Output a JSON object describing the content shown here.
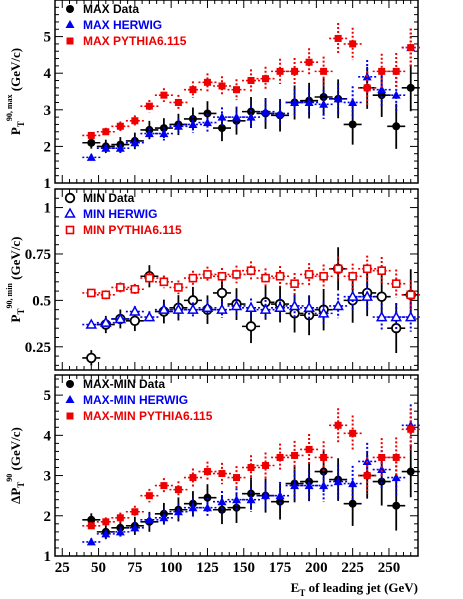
{
  "chart_data": [
    {
      "type": "scatter",
      "ylabel": "P_T^{90, max} (GeV/c)",
      "ylim": [
        1,
        6
      ],
      "xlim": [
        20,
        270
      ],
      "yticks": [
        1,
        2,
        3,
        4,
        5
      ],
      "legend_position": "top-left",
      "series": [
        {
          "name": "MAX Data",
          "color": "#000000",
          "marker": "filled-circle",
          "x": [
            45,
            55,
            65,
            75,
            85,
            95,
            105,
            115,
            125,
            135,
            145,
            155,
            165,
            175,
            185,
            195,
            205,
            215,
            225,
            235,
            245,
            255,
            265
          ],
          "y": [
            2.1,
            2.0,
            2.05,
            2.15,
            2.45,
            2.5,
            2.6,
            2.75,
            2.9,
            2.5,
            2.7,
            2.95,
            2.9,
            2.85,
            3.2,
            3.25,
            3.35,
            3.3,
            2.6,
            3.6,
            3.4,
            2.55,
            3.6
          ]
        },
        {
          "name": "MAX HERWIG",
          "color": "#0000ee",
          "marker": "triangle",
          "x": [
            45,
            55,
            65,
            75,
            85,
            95,
            105,
            115,
            125,
            135,
            145,
            155,
            165,
            175,
            185,
            195,
            205,
            215,
            225,
            235,
            245,
            255,
            265
          ],
          "y": [
            1.7,
            1.95,
            1.95,
            2.1,
            2.35,
            2.35,
            2.55,
            2.6,
            2.65,
            2.8,
            2.8,
            2.8,
            2.95,
            2.9,
            3.2,
            3.2,
            3.15,
            3.3,
            3.2,
            3.9,
            3.55,
            3.4,
            4.7
          ]
        },
        {
          "name": "MAX PYTHIA6.115",
          "color": "#ee0000",
          "marker": "filled-square",
          "x": [
            45,
            55,
            65,
            75,
            85,
            95,
            105,
            115,
            125,
            135,
            145,
            155,
            165,
            175,
            185,
            195,
            205,
            215,
            225,
            235,
            245,
            255,
            265
          ],
          "y": [
            2.3,
            2.4,
            2.55,
            2.7,
            3.1,
            3.4,
            3.2,
            3.55,
            3.75,
            3.65,
            3.55,
            3.8,
            3.85,
            4.05,
            4.05,
            4.3,
            4.05,
            4.95,
            4.8,
            3.6,
            4.05,
            4.05,
            4.7
          ]
        }
      ]
    },
    {
      "type": "scatter",
      "ylabel": "P_T^{90, min} (GeV/c)",
      "ylim": [
        0.125,
        1.1
      ],
      "xlim": [
        20,
        270
      ],
      "yticks": [
        0.25,
        0.5,
        0.75,
        1
      ],
      "legend_position": "top-left",
      "series": [
        {
          "name": "MIN Data",
          "color": "#000000",
          "marker": "open-circle",
          "x": [
            45,
            55,
            65,
            75,
            85,
            95,
            105,
            115,
            125,
            135,
            145,
            155,
            165,
            175,
            185,
            195,
            205,
            215,
            225,
            235,
            245,
            255,
            265
          ],
          "y": [
            0.19,
            0.37,
            0.4,
            0.39,
            0.63,
            0.44,
            0.46,
            0.5,
            0.45,
            0.54,
            0.48,
            0.36,
            0.49,
            0.48,
            0.43,
            0.42,
            0.45,
            0.67,
            0.5,
            0.54,
            0.52,
            0.35,
            0.53
          ]
        },
        {
          "name": "MIN HERWIG",
          "color": "#0000ee",
          "marker": "open-triangle",
          "x": [
            45,
            55,
            65,
            75,
            85,
            95,
            105,
            115,
            125,
            135,
            145,
            155,
            165,
            175,
            185,
            195,
            205,
            215,
            225,
            235,
            245,
            255,
            265
          ],
          "y": [
            0.37,
            0.38,
            0.4,
            0.44,
            0.41,
            0.45,
            0.45,
            0.45,
            0.46,
            0.45,
            0.47,
            0.46,
            0.45,
            0.46,
            0.47,
            0.46,
            0.43,
            0.47,
            0.52,
            0.52,
            0.41,
            0.41,
            0.41
          ]
        },
        {
          "name": "MIN PYTHIA6.115",
          "color": "#ee0000",
          "marker": "open-square",
          "x": [
            45,
            55,
            65,
            75,
            85,
            95,
            105,
            115,
            125,
            135,
            145,
            155,
            165,
            175,
            185,
            195,
            205,
            215,
            225,
            235,
            245,
            255,
            265
          ],
          "y": [
            0.54,
            0.53,
            0.57,
            0.56,
            0.62,
            0.6,
            0.57,
            0.62,
            0.64,
            0.63,
            0.64,
            0.66,
            0.62,
            0.63,
            0.59,
            0.64,
            0.63,
            0.67,
            0.63,
            0.67,
            0.66,
            0.59,
            0.53
          ]
        }
      ]
    },
    {
      "type": "scatter",
      "ylabel": "ΔP_T^{90} (GeV/c)",
      "xlabel": "E_T of leading jet (GeV)",
      "ylim": [
        1,
        5.5
      ],
      "xlim": [
        20,
        270
      ],
      "yticks": [
        1,
        2,
        3,
        4,
        5
      ],
      "xticks": [
        25,
        50,
        75,
        100,
        125,
        150,
        175,
        200,
        225,
        250
      ],
      "legend_position": "top-left",
      "series": [
        {
          "name": "MAX-MIN Data",
          "color": "#000000",
          "marker": "filled-circle",
          "x": [
            45,
            55,
            65,
            75,
            85,
            95,
            105,
            115,
            125,
            135,
            145,
            155,
            165,
            175,
            185,
            195,
            205,
            215,
            225,
            235,
            245,
            255,
            265
          ],
          "y": [
            1.9,
            1.6,
            1.7,
            1.75,
            1.85,
            2.05,
            2.15,
            2.3,
            2.45,
            2.15,
            2.2,
            2.55,
            2.5,
            2.35,
            2.8,
            2.85,
            3.1,
            2.9,
            2.3,
            3.0,
            2.85,
            2.25,
            3.1
          ]
        },
        {
          "name": "MAX-MIN HERWIG",
          "color": "#0000ee",
          "marker": "triangle",
          "x": [
            45,
            55,
            65,
            75,
            85,
            95,
            105,
            115,
            125,
            135,
            145,
            155,
            165,
            175,
            185,
            195,
            205,
            215,
            225,
            235,
            245,
            255,
            265
          ],
          "y": [
            1.35,
            1.55,
            1.6,
            1.7,
            1.9,
            1.95,
            2.1,
            2.2,
            2.2,
            2.35,
            2.4,
            2.4,
            2.5,
            2.5,
            2.75,
            2.75,
            2.75,
            2.85,
            2.8,
            3.35,
            3.15,
            2.95,
            4.25
          ]
        },
        {
          "name": "MAX-MIN PYTHIA6.115",
          "color": "#ee0000",
          "marker": "filled-square",
          "x": [
            45,
            55,
            65,
            75,
            85,
            95,
            105,
            115,
            125,
            135,
            145,
            155,
            165,
            175,
            185,
            195,
            205,
            215,
            225,
            235,
            245,
            255,
            265
          ],
          "y": [
            1.75,
            1.85,
            1.95,
            2.1,
            2.5,
            2.75,
            2.65,
            2.95,
            3.1,
            3.05,
            2.95,
            3.2,
            3.25,
            3.45,
            3.5,
            3.65,
            3.45,
            4.25,
            4.05,
            3.0,
            3.45,
            3.45,
            4.15
          ]
        }
      ]
    }
  ]
}
